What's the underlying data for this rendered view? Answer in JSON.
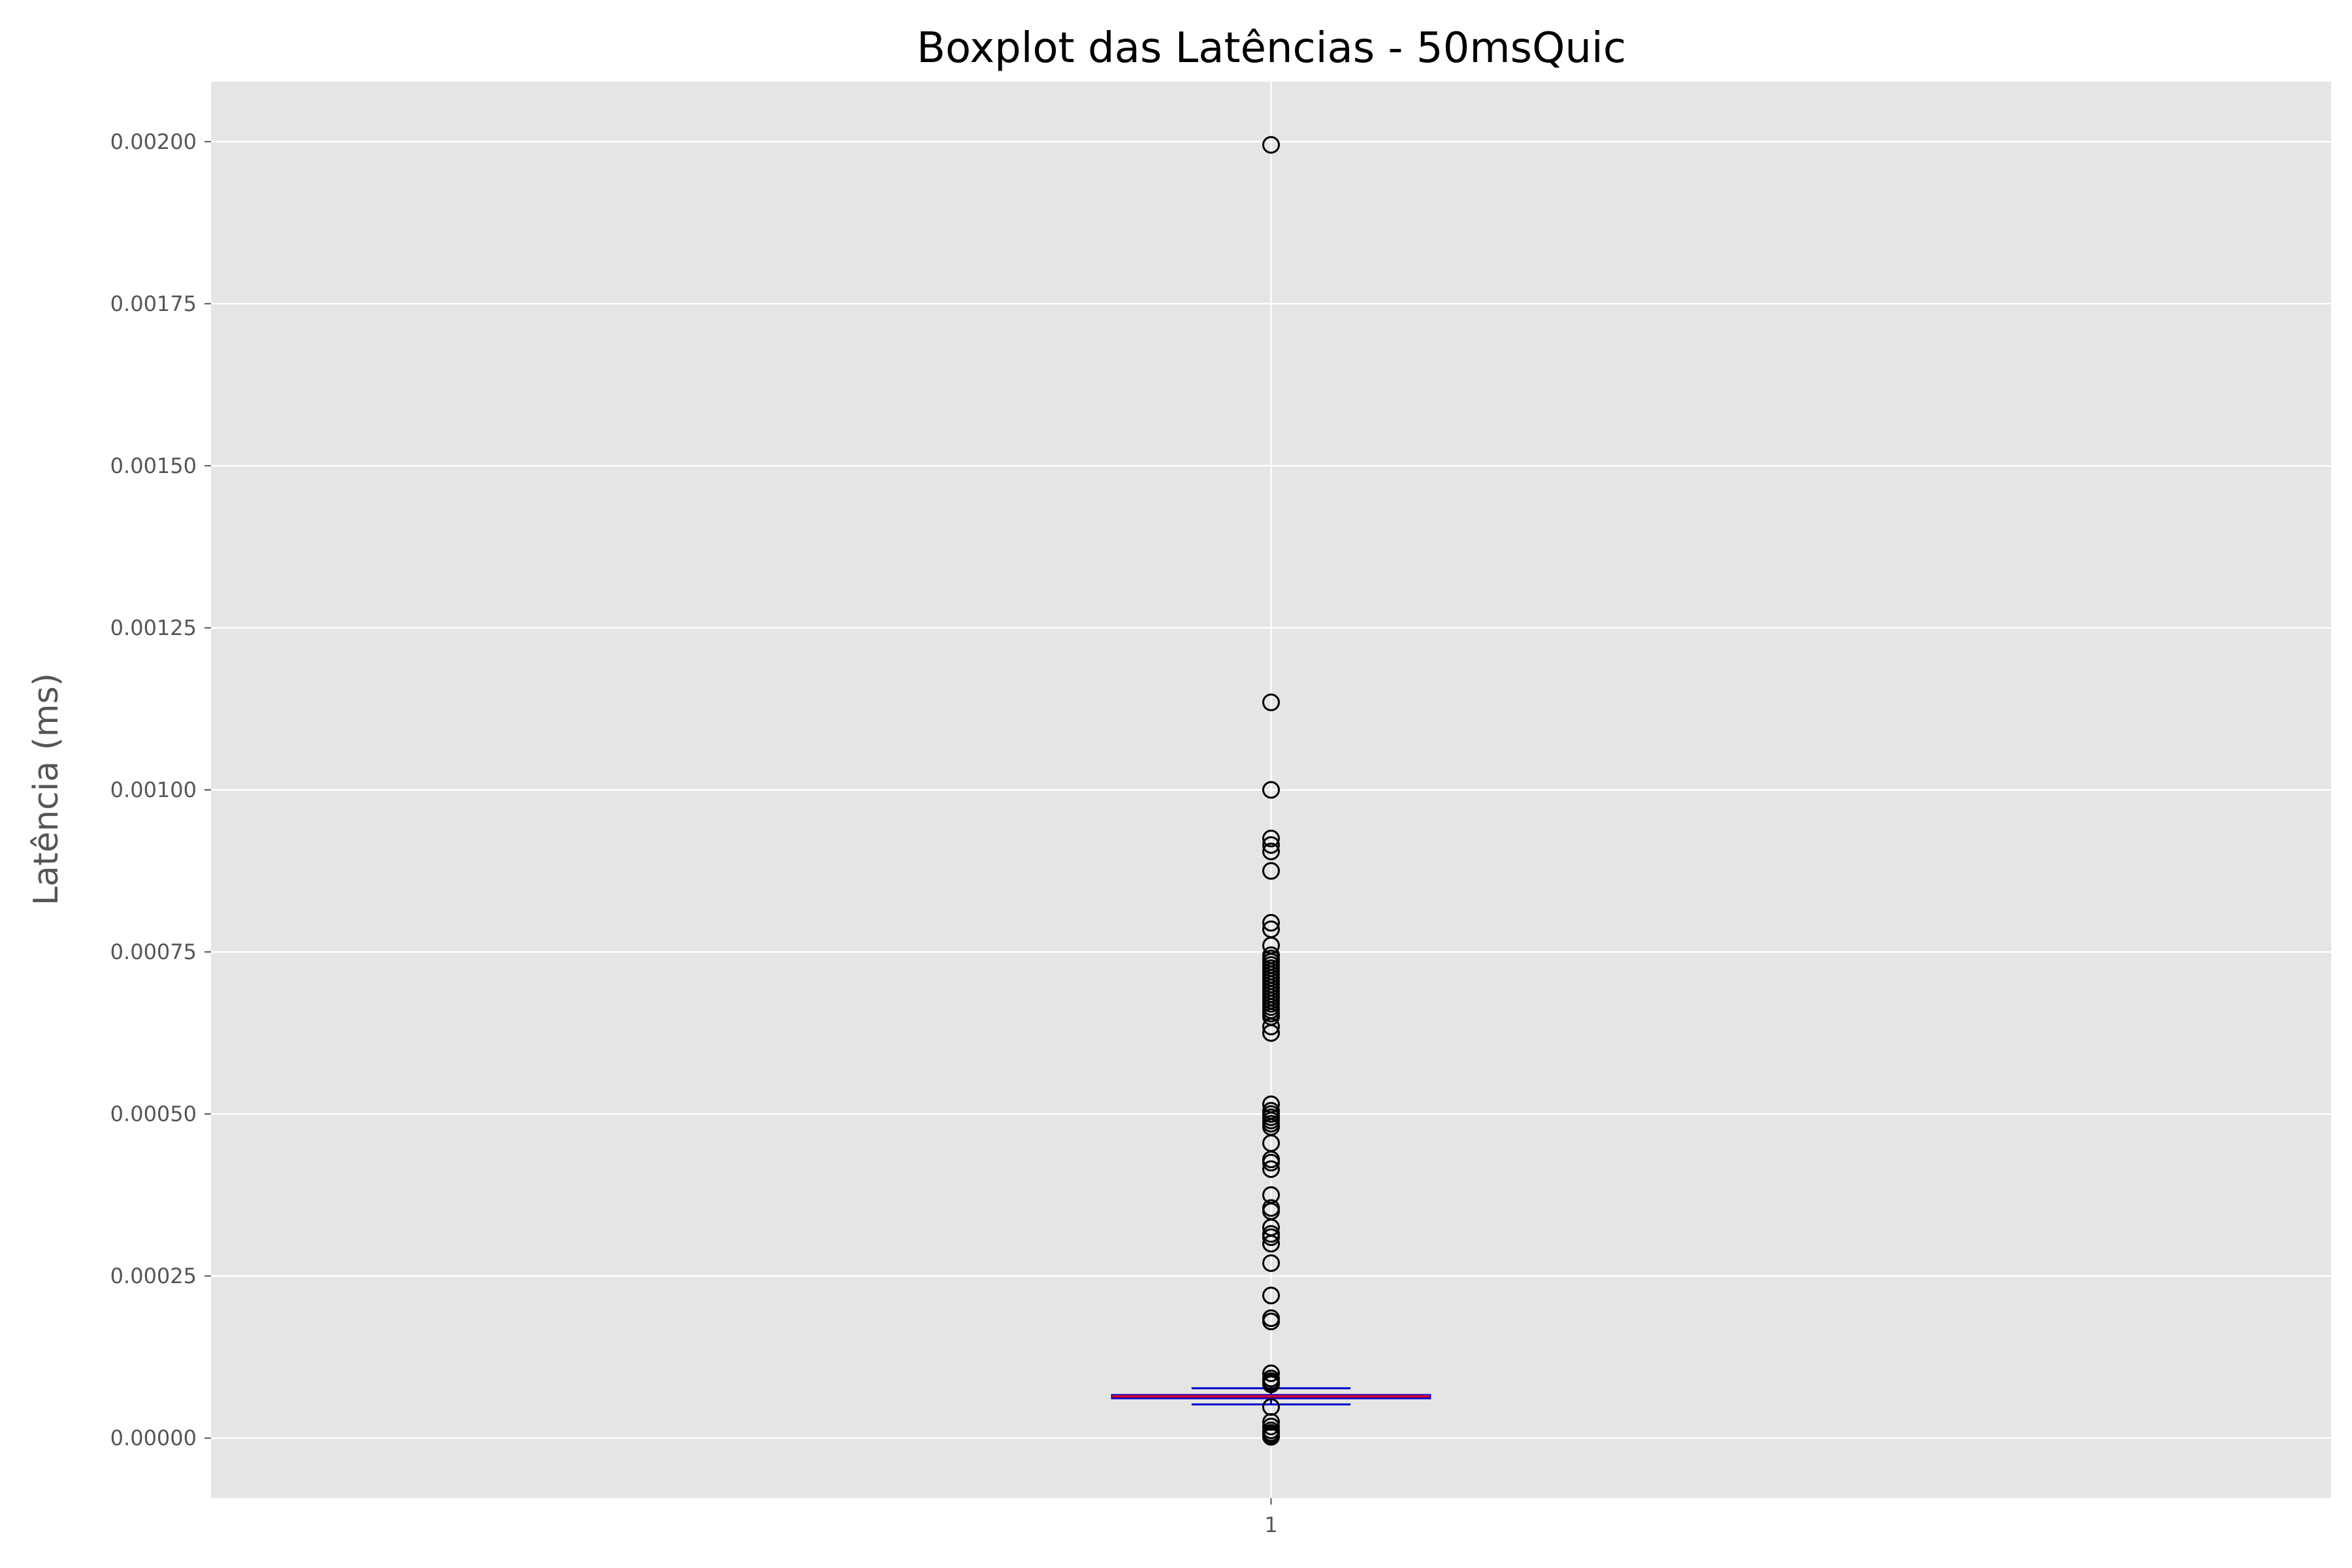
{
  "chart_data": {
    "type": "boxplot",
    "title": "Boxplot das Latências - 50msQuic",
    "xlabel": "",
    "ylabel": "Latência (ms)",
    "categories": [
      "1"
    ],
    "ylim": [
      -9.25e-05,
      0.0020925
    ],
    "xlim": [
      0.5,
      1.5
    ],
    "grid": true,
    "y_ticks": [
      0.0,
      0.00025,
      0.0005,
      0.00075,
      0.001,
      0.00125,
      0.0015,
      0.00175,
      0.002
    ],
    "y_tick_labels": [
      "0.00000",
      "0.00025",
      "0.00050",
      "0.00075",
      "0.00100",
      "0.00125",
      "0.00150",
      "0.00175",
      "0.00200"
    ],
    "box": {
      "x": 1,
      "q1": 6.15e-05,
      "median": 6.45e-05,
      "q3": 6.65e-05,
      "whisker_low": 5.2e-05,
      "whisker_high": 7.7e-05
    },
    "outliers": [
      0.001995,
      0.001135,
      0.001,
      0.000925,
      0.000915,
      0.000905,
      0.000875,
      0.000795,
      0.000785,
      0.00076,
      0.000745,
      0.00074,
      0.000735,
      0.00073,
      0.000725,
      0.00072,
      0.000715,
      0.00071,
      0.000705,
      0.0007,
      0.000695,
      0.00069,
      0.000685,
      0.00068,
      0.000675,
      0.00067,
      0.000665,
      0.00066,
      0.000655,
      0.00065,
      0.000635,
      0.000625,
      0.000515,
      0.000505,
      0.0005,
      0.000495,
      0.00049,
      0.000485,
      0.00048,
      0.000455,
      0.00043,
      0.000425,
      0.000415,
      0.000375,
      0.000355,
      0.00035,
      0.000325,
      0.000315,
      0.00031,
      0.0003,
      0.00027,
      0.00022,
      0.000185,
      0.00018,
      0.0001,
      9.2e-05,
      8.8e-05,
      8.5e-05,
      8.3e-05,
      4.8e-05,
      2.5e-05,
      1.8e-05,
      1.2e-05,
      8e-06,
      5e-06,
      2e-06
    ],
    "colors": {
      "background": "#e5e5e5",
      "grid": "#ffffff",
      "box": "#0000cc",
      "median": "#cc0033",
      "outlier_edge": "#000000"
    }
  }
}
